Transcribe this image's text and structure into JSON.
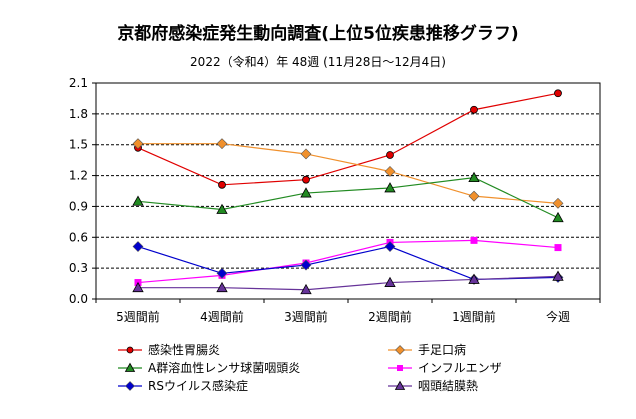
{
  "chart_data": {
    "type": "line",
    "title": "京都府感染症発生動向調査(上位5位疾患推移グラフ)",
    "subtitle": "2022（令和4）年 48週 (11月28日〜12月4日)",
    "categories": [
      "5週間前",
      "4週間前",
      "3週間前",
      "2週間前",
      "1週間前",
      "今週"
    ],
    "ylim": [
      0,
      2.1
    ],
    "yticks": [
      "0.0",
      "0.3",
      "0.6",
      "0.9",
      "1.2",
      "1.5",
      "1.8",
      "2.1"
    ],
    "grid": true,
    "legend_position": "bottom",
    "series": [
      {
        "name": "感染性胃腸炎",
        "color": "#e00000",
        "marker": "circle",
        "values": [
          1.47,
          1.11,
          1.16,
          1.4,
          1.84,
          2.0
        ]
      },
      {
        "name": "手足口病",
        "color": "#f0902c",
        "marker": "diamond",
        "values": [
          1.51,
          1.51,
          1.41,
          1.24,
          1.0,
          0.93
        ]
      },
      {
        "name": "A群溶血性レンサ球菌咽頭炎",
        "color": "#228b22",
        "marker": "triangle",
        "values": [
          0.95,
          0.87,
          1.03,
          1.08,
          1.18,
          0.79
        ]
      },
      {
        "name": "インフルエンザ",
        "color": "#ff00ff",
        "marker": "square",
        "values": [
          0.16,
          0.23,
          0.35,
          0.55,
          0.57,
          0.5
        ]
      },
      {
        "name": "RSウイルス感染症",
        "color": "#0000cc",
        "marker": "diamond",
        "values": [
          0.51,
          0.25,
          0.33,
          0.51,
          0.19,
          0.21
        ]
      },
      {
        "name": "咽頭結膜熱",
        "color": "#663399",
        "marker": "triangle",
        "values": [
          0.11,
          0.11,
          0.09,
          0.16,
          0.19,
          0.22
        ]
      }
    ]
  }
}
